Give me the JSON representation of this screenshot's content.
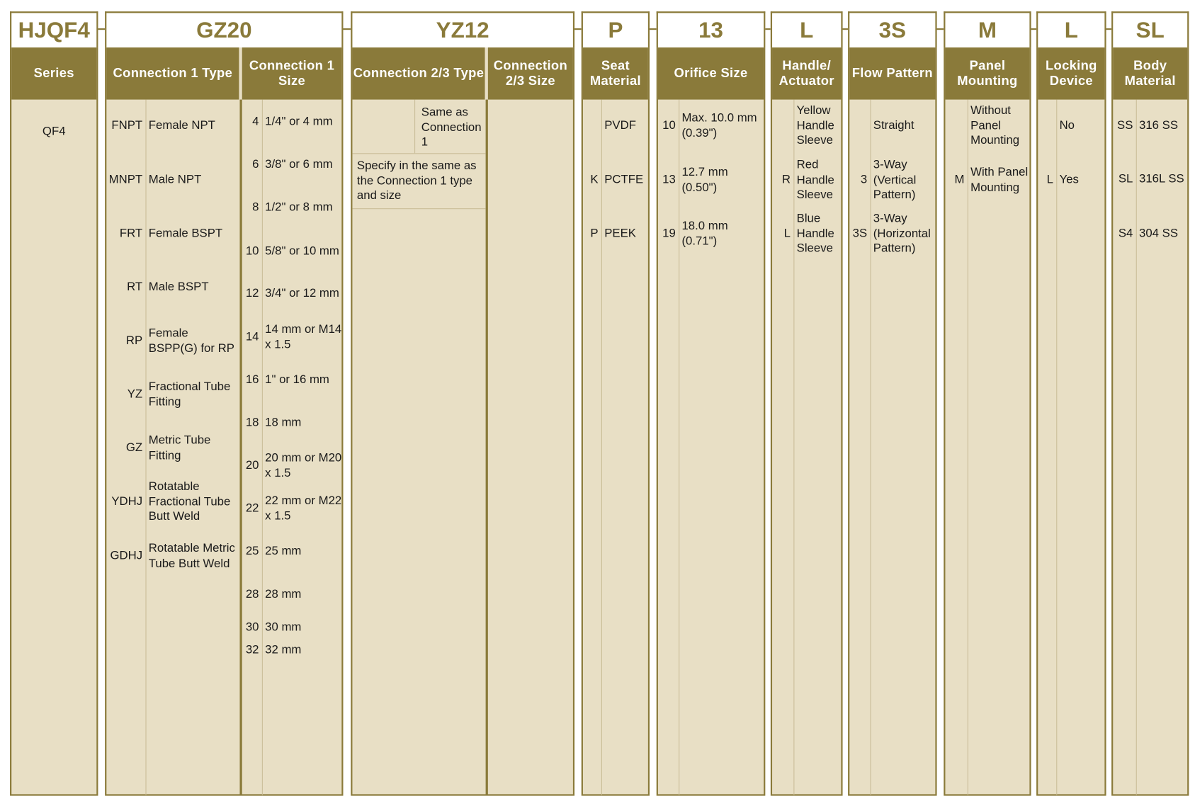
{
  "codes": [
    "HJQF4",
    "GZ20",
    "YZ12",
    "P",
    "13",
    "L",
    "3S",
    "M",
    "L",
    "SL"
  ],
  "headers": {
    "series": "Series",
    "conn1_type": "Connection 1 Type",
    "conn1_size": "Connection 1 Size",
    "conn23_type": "Connection 2/3 Type",
    "conn23_size": "Connection 2/3 Size",
    "seat": "Seat Material",
    "orifice": "Orifice Size",
    "handle": "Handle/ Actuator",
    "flow": "Flow Pattern",
    "panel": "Panel Mounting",
    "locking": "Locking Device",
    "body": "Body Material"
  },
  "colors": {
    "accent": "#8a7a3a",
    "body_bg": "#e8dfc5"
  },
  "series": [
    {
      "code": "",
      "desc": "QF4"
    }
  ],
  "conn1_type": [
    {
      "code": "FNPT",
      "desc": "Female NPT"
    },
    {
      "code": "MNPT",
      "desc": "Male NPT"
    },
    {
      "code": "FRT",
      "desc": "Female BSPT"
    },
    {
      "code": "RT",
      "desc": "Male BSPT"
    },
    {
      "code": "RP",
      "desc": "Female BSPP(G) for RP"
    },
    {
      "code": "YZ",
      "desc": "Fractional Tube Fitting"
    },
    {
      "code": "GZ",
      "desc": "Metric Tube Fitting"
    },
    {
      "code": "YDHJ",
      "desc": "Rotatable Fractional Tube Butt Weld"
    },
    {
      "code": "GDHJ",
      "desc": "Rotatable Metric Tube Butt Weld"
    }
  ],
  "conn1_size": [
    {
      "code": "4",
      "desc": "1/4\" or 4 mm"
    },
    {
      "code": "6",
      "desc": "3/8\" or 6 mm"
    },
    {
      "code": "8",
      "desc": "1/2\" or 8 mm"
    },
    {
      "code": "10",
      "desc": "5/8\" or 10 mm"
    },
    {
      "code": "12",
      "desc": "3/4\" or 12 mm"
    },
    {
      "code": "14",
      "desc": "14 mm or M14 x 1.5"
    },
    {
      "code": "16",
      "desc": "1\" or 16 mm"
    },
    {
      "code": "18",
      "desc": "18 mm"
    },
    {
      "code": "20",
      "desc": "20 mm or M20 x 1.5"
    },
    {
      "code": "22",
      "desc": "22 mm or M22 x 1.5"
    },
    {
      "code": "25",
      "desc": "25 mm"
    },
    {
      "code": "28",
      "desc": "28 mm"
    },
    {
      "code": "30",
      "desc": "30 mm"
    },
    {
      "code": "32",
      "desc": "32 mm"
    }
  ],
  "conn23_type": {
    "same": "Same as Connection 1",
    "specify": "Specify in the same as the Connection 1 type and size"
  },
  "seat": [
    {
      "code": "",
      "desc": "PVDF"
    },
    {
      "code": "K",
      "desc": "PCTFE"
    },
    {
      "code": "P",
      "desc": "PEEK"
    }
  ],
  "orifice": [
    {
      "code": "10",
      "desc": "Max. 10.0 mm (0.39\")"
    },
    {
      "code": "13",
      "desc": "12.7 mm (0.50\")"
    },
    {
      "code": "19",
      "desc": "18.0 mm (0.71\")"
    }
  ],
  "handle": [
    {
      "code": "",
      "desc": "Yellow Handle Sleeve"
    },
    {
      "code": "R",
      "desc": "Red Handle Sleeve"
    },
    {
      "code": "L",
      "desc": "Blue Handle Sleeve"
    }
  ],
  "flow": [
    {
      "code": "",
      "desc": "Straight"
    },
    {
      "code": "3",
      "desc": "3-Way (Vertical Pattern)"
    },
    {
      "code": "3S",
      "desc": "3-Way (Horizontal Pattern)"
    }
  ],
  "panel": [
    {
      "code": "",
      "desc": "Without Panel Mounting"
    },
    {
      "code": "M",
      "desc": "With Panel Mounting"
    }
  ],
  "locking": [
    {
      "code": "",
      "desc": "No"
    },
    {
      "code": "L",
      "desc": "Yes"
    }
  ],
  "body": [
    {
      "code": "SS",
      "desc": "316 SS"
    },
    {
      "code": "SL",
      "desc": "316L SS"
    },
    {
      "code": "S4",
      "desc": "304 SS"
    }
  ]
}
